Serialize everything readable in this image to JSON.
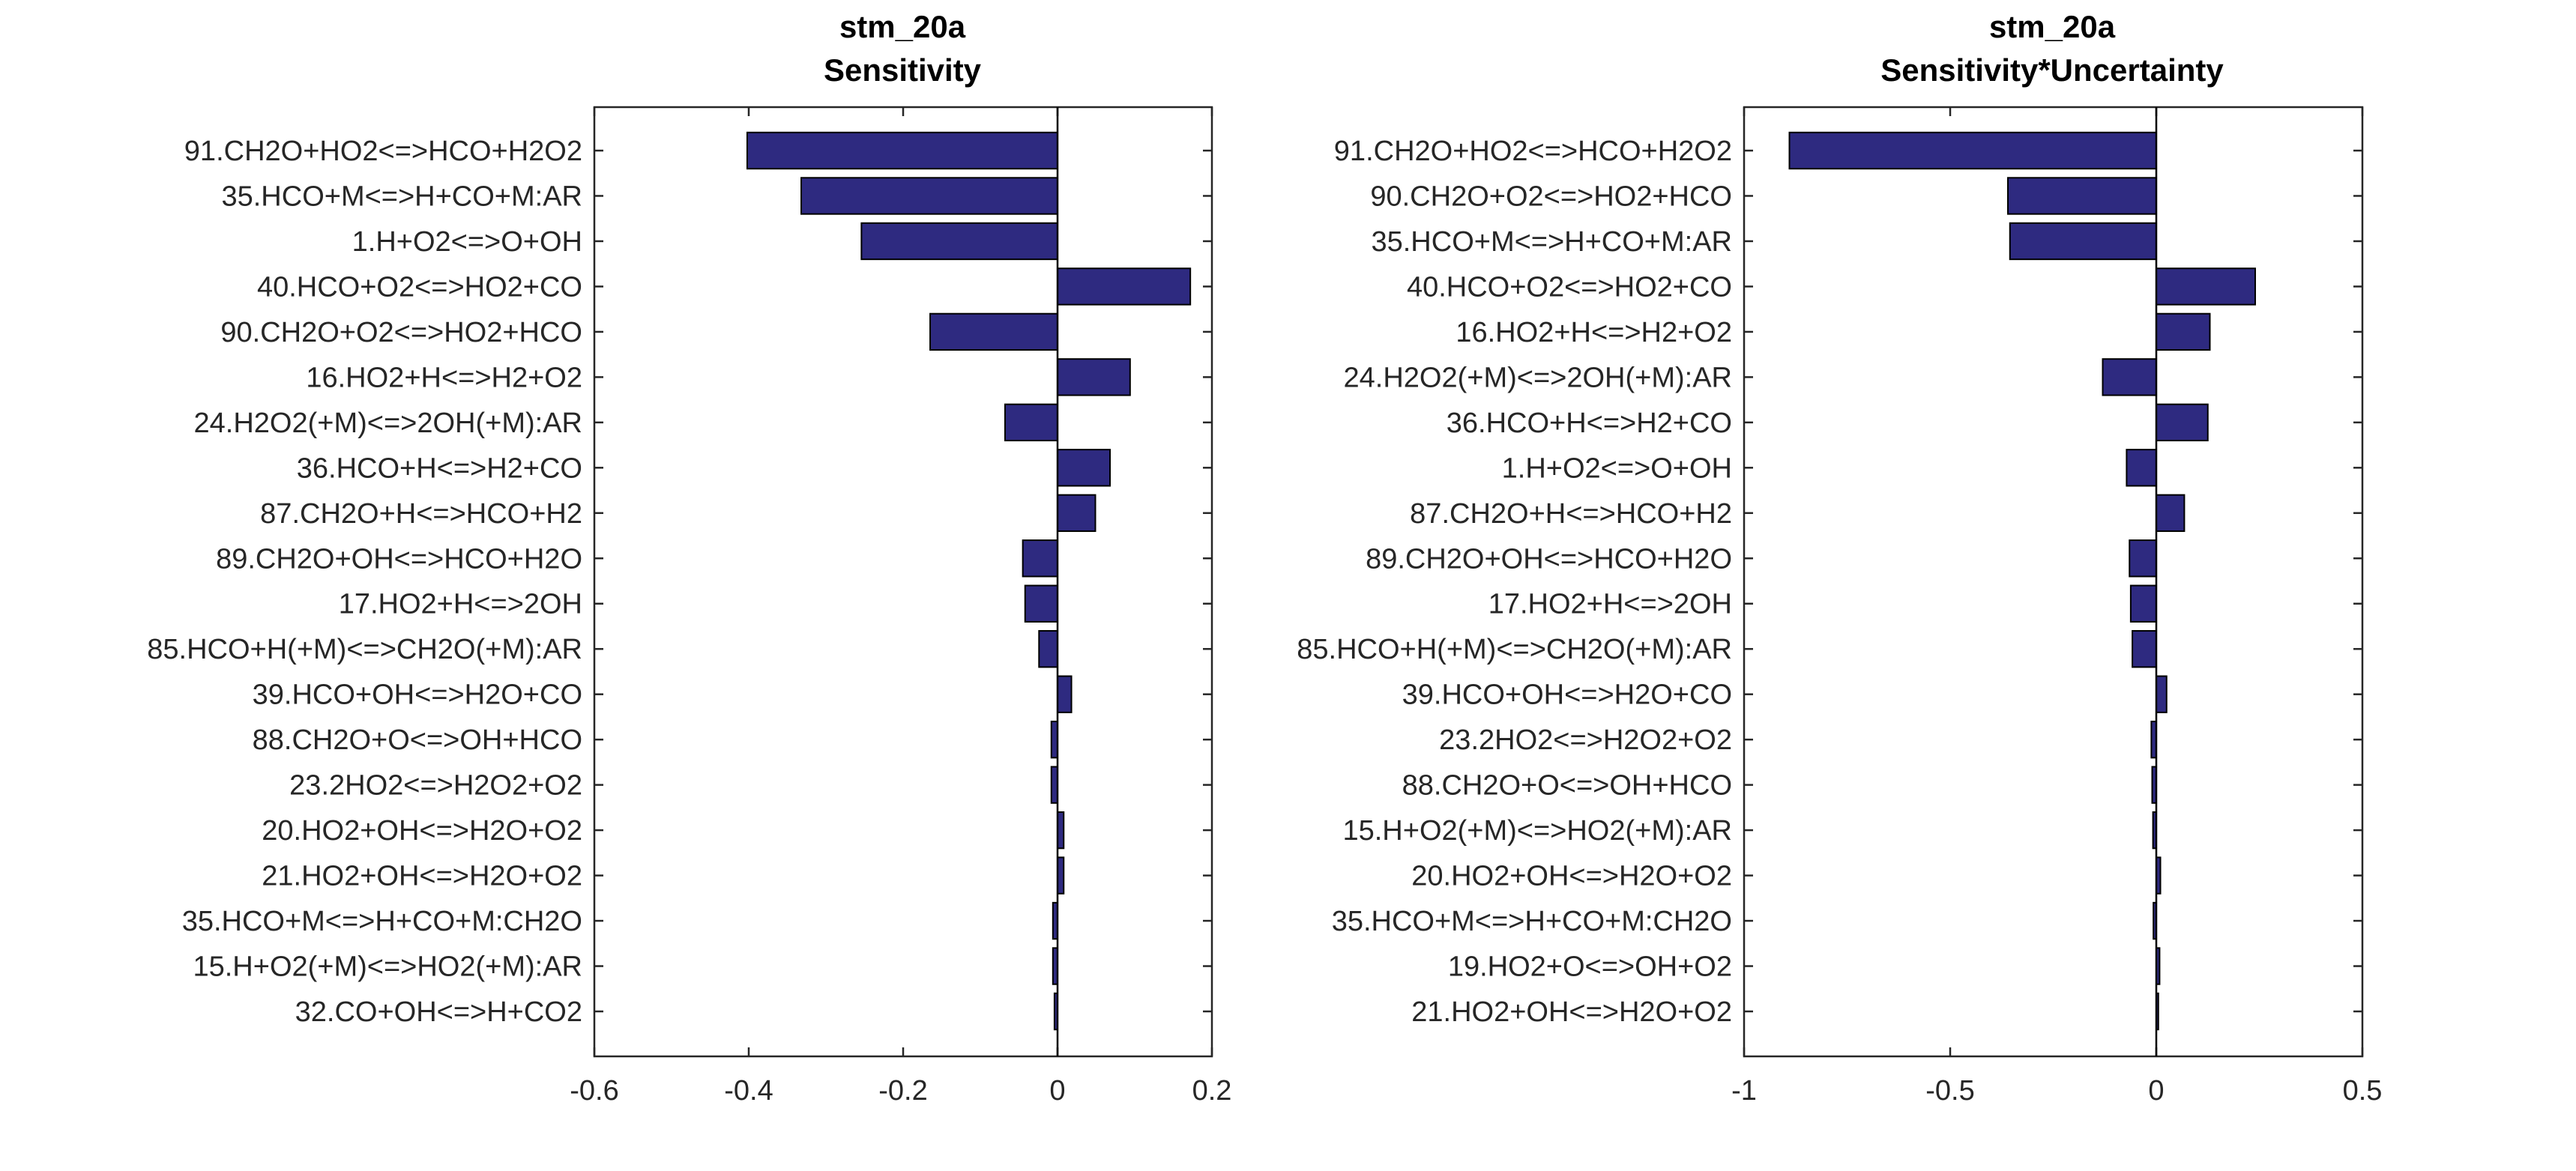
{
  "chart_data": [
    {
      "type": "bar",
      "orientation": "horizontal",
      "title": "stm_20a",
      "subtitle": "Sensitivity",
      "xlim": [
        -0.6,
        0.2
      ],
      "xticks": [
        "-0.6",
        "-0.4",
        "-0.2",
        "0",
        "0.2"
      ],
      "bar_color": "#2e2a80",
      "categories": [
        "91.CH2O+HO2<=>HCO+H2O2",
        "35.HCO+M<=>H+CO+M:AR",
        "1.H+O2<=>O+OH",
        "40.HCO+O2<=>HO2+CO",
        "90.CH2O+O2<=>HO2+HCO",
        "16.HO2+H<=>H2+O2",
        "24.H2O2(+M)<=>2OH(+M):AR",
        "36.HCO+H<=>H2+CO",
        "87.CH2O+H<=>HCO+H2",
        "89.CH2O+OH<=>HCO+H2O",
        "17.HO2+H<=>2OH",
        "85.HCO+H(+M)<=>CH2O(+M):AR",
        "39.HCO+OH<=>H2O+CO",
        "88.CH2O+O<=>OH+HCO",
        "23.2HO2<=>H2O2+O2",
        "20.HO2+OH<=>H2O+O2",
        "21.HO2+OH<=>H2O+O2",
        "35.HCO+M<=>H+CO+M:CH2O",
        "15.H+O2(+M)<=>HO2(+M):AR",
        "32.CO+OH<=>H+CO2"
      ],
      "values": [
        -0.402,
        -0.332,
        -0.254,
        0.172,
        -0.165,
        0.094,
        -0.068,
        0.068,
        0.049,
        -0.045,
        -0.042,
        -0.024,
        0.018,
        -0.008,
        -0.008,
        0.008,
        0.008,
        -0.006,
        -0.006,
        -0.004
      ]
    },
    {
      "type": "bar",
      "orientation": "horizontal",
      "title": "stm_20a",
      "subtitle": "Sensitivity*Uncertainty",
      "xlim": [
        -1,
        0.5
      ],
      "xticks": [
        "-1",
        "-0.5",
        "0",
        "0.5"
      ],
      "bar_color": "#2e2a80",
      "categories": [
        "91.CH2O+HO2<=>HCO+H2O2",
        "90.CH2O+O2<=>HO2+HCO",
        "35.HCO+M<=>H+CO+M:AR",
        "40.HCO+O2<=>HO2+CO",
        "16.HO2+H<=>H2+O2",
        "24.H2O2(+M)<=>2OH(+M):AR",
        "36.HCO+H<=>H2+CO",
        "1.H+O2<=>O+OH",
        "87.CH2O+H<=>HCO+H2",
        "89.CH2O+OH<=>HCO+H2O",
        "17.HO2+H<=>2OH",
        "85.HCO+H(+M)<=>CH2O(+M):AR",
        "39.HCO+OH<=>H2O+CO",
        "23.2HO2<=>H2O2+O2",
        "88.CH2O+O<=>OH+HCO",
        "15.H+O2(+M)<=>HO2(+M):AR",
        "20.HO2+OH<=>H2O+O2",
        "35.HCO+M<=>H+CO+M:CH2O",
        "19.HO2+O<=>OH+O2",
        "21.HO2+OH<=>H2O+O2"
      ],
      "values": [
        -0.89,
        -0.36,
        -0.355,
        0.24,
        0.13,
        -0.13,
        0.125,
        -0.072,
        0.068,
        -0.065,
        -0.062,
        -0.058,
        0.025,
        -0.012,
        -0.01,
        -0.008,
        0.01,
        -0.007,
        0.008,
        0.005
      ]
    }
  ]
}
